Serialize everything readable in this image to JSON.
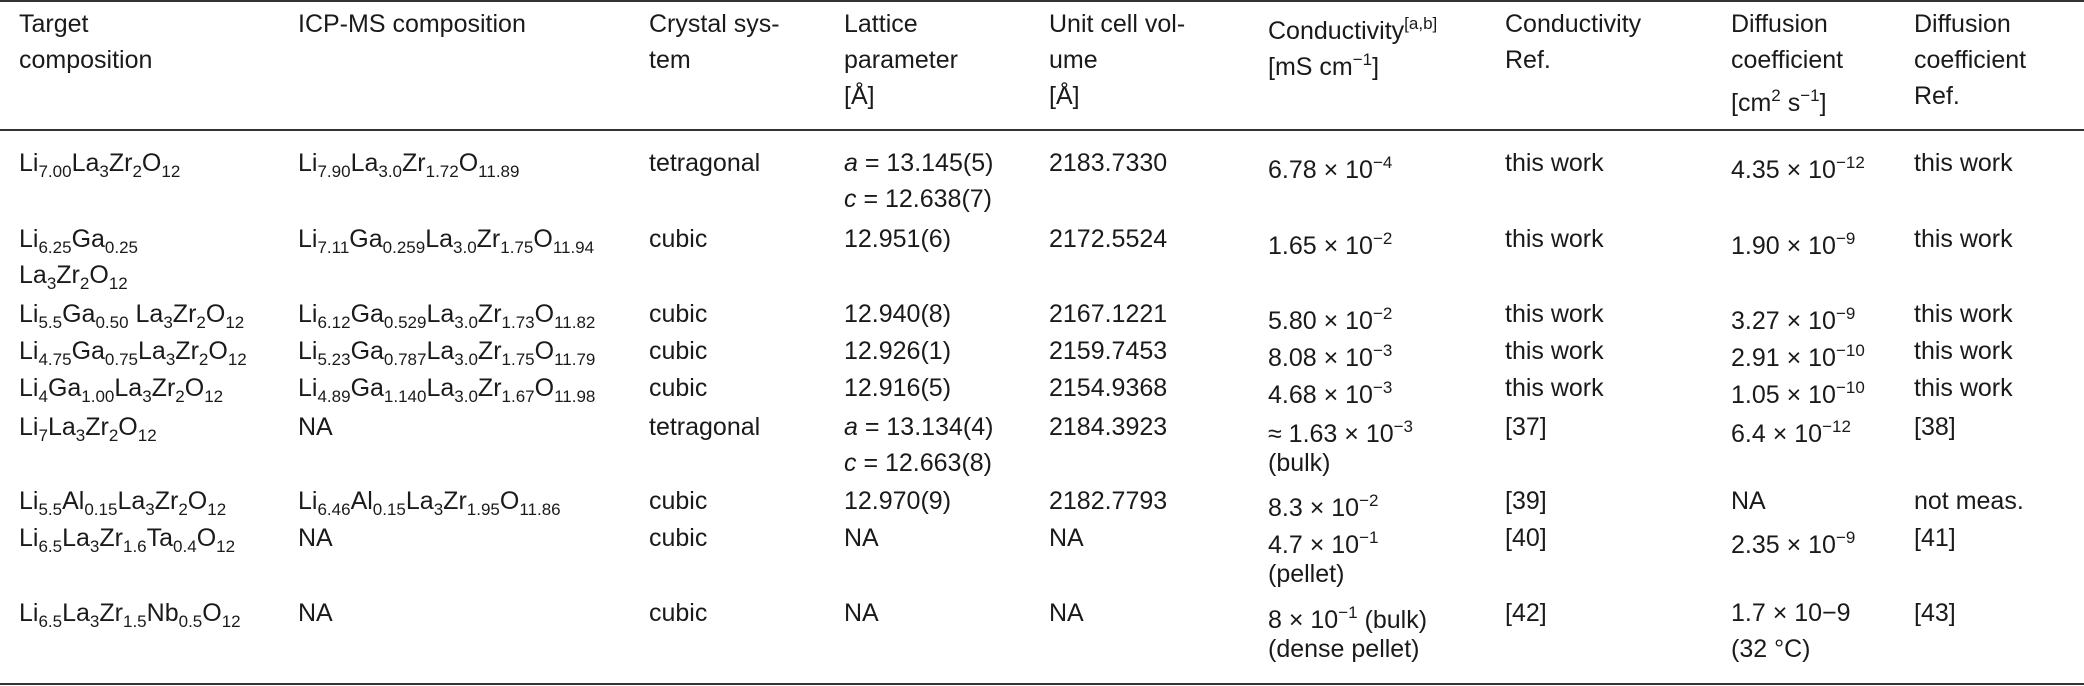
{
  "table": {
    "header": [
      [
        [
          "Target"
        ],
        [
          "composition"
        ]
      ],
      [
        [
          "ICP-MS composition"
        ]
      ],
      [
        [
          "Crystal sys-"
        ],
        [
          "tem"
        ]
      ],
      [
        [
          "Lattice"
        ],
        [
          "parameter"
        ],
        [
          "[Å]"
        ]
      ],
      [
        [
          "Unit cell vol-"
        ],
        [
          "ume"
        ],
        [
          "[Å]"
        ]
      ],
      [
        [
          "Conductivity",
          {
            "sup": "[a,b]"
          }
        ],
        [
          "[mS cm",
          {
            "sup": "−1"
          },
          "]"
        ]
      ],
      [
        [
          "Conductivity"
        ],
        [
          "Ref."
        ]
      ],
      [
        [
          "Diffusion"
        ],
        [
          "coefficient"
        ],
        [
          "[cm",
          {
            "sup": "2"
          },
          " s",
          {
            "sup": "−1"
          },
          "]"
        ]
      ],
      [
        [
          "Diffusion"
        ],
        [
          "coefficient"
        ],
        [
          "Ref."
        ]
      ]
    ],
    "rows": [
      [
        [
          [
            "Li",
            {
              "sub": "7.00"
            },
            "La",
            {
              "sub": "3"
            },
            "Zr",
            {
              "sub": "2"
            },
            "O",
            {
              "sub": "12"
            }
          ]
        ],
        [
          [
            "Li",
            {
              "sub": "7.90"
            },
            "La",
            {
              "sub": "3.0"
            },
            "Zr",
            {
              "sub": "1.72"
            },
            "O",
            {
              "sub": "11.89"
            }
          ]
        ],
        [
          [
            "tetragonal"
          ]
        ],
        [
          [
            {
              "i": "a"
            },
            " = 13.145(5)"
          ],
          [
            {
              "i": "c"
            },
            " = 12.638(7)"
          ]
        ],
        [
          [
            "2183.7330"
          ]
        ],
        [
          [
            "6.78 × 10",
            {
              "sup": "−4"
            }
          ]
        ],
        [
          [
            "this work"
          ]
        ],
        [
          [
            "4.35 × 10",
            {
              "sup": "−12"
            }
          ]
        ],
        [
          [
            "this work"
          ]
        ]
      ],
      [
        [
          [
            "Li",
            {
              "sub": "6.25"
            },
            "Ga",
            {
              "sub": "0.25"
            }
          ],
          [
            "La",
            {
              "sub": "3"
            },
            "Zr",
            {
              "sub": "2"
            },
            "O",
            {
              "sub": "12"
            }
          ]
        ],
        [
          [
            "Li",
            {
              "sub": "7.11"
            },
            "Ga",
            {
              "sub": "0.259"
            },
            "La",
            {
              "sub": "3.0"
            },
            "Zr",
            {
              "sub": "1.75"
            },
            "O",
            {
              "sub": "11.94"
            }
          ]
        ],
        [
          [
            "cubic"
          ]
        ],
        [
          [
            "12.951(6)"
          ]
        ],
        [
          [
            "2172.5524"
          ]
        ],
        [
          [
            "1.65 × 10",
            {
              "sup": "−2"
            }
          ]
        ],
        [
          [
            "this work"
          ]
        ],
        [
          [
            "1.90 × 10",
            {
              "sup": "−9"
            }
          ]
        ],
        [
          [
            "this work"
          ]
        ]
      ],
      [
        [
          [
            "Li",
            {
              "sub": "5.5"
            },
            "Ga",
            {
              "sub": "0.50"
            },
            " La",
            {
              "sub": "3"
            },
            "Zr",
            {
              "sub": "2"
            },
            "O",
            {
              "sub": "12"
            }
          ]
        ],
        [
          [
            "Li",
            {
              "sub": "6.12"
            },
            "Ga",
            {
              "sub": "0.529"
            },
            "La",
            {
              "sub": "3.0"
            },
            "Zr",
            {
              "sub": "1.73"
            },
            "O",
            {
              "sub": "11.82"
            }
          ]
        ],
        [
          [
            "cubic"
          ]
        ],
        [
          [
            "12.940(8)"
          ]
        ],
        [
          [
            "2167.1221"
          ]
        ],
        [
          [
            "5.80 × 10",
            {
              "sup": "−2"
            }
          ]
        ],
        [
          [
            "this work"
          ]
        ],
        [
          [
            "3.27 × 10",
            {
              "sup": "−9"
            }
          ]
        ],
        [
          [
            "this work"
          ]
        ]
      ],
      [
        [
          [
            "Li",
            {
              "sub": "4.75"
            },
            "Ga",
            {
              "sub": "0.75"
            },
            "La",
            {
              "sub": "3"
            },
            "Zr",
            {
              "sub": "2"
            },
            "O",
            {
              "sub": "12"
            }
          ]
        ],
        [
          [
            "Li",
            {
              "sub": "5.23"
            },
            "Ga",
            {
              "sub": "0.787"
            },
            "La",
            {
              "sub": "3.0"
            },
            "Zr",
            {
              "sub": "1.75"
            },
            "O",
            {
              "sub": "11.79"
            }
          ]
        ],
        [
          [
            "cubic"
          ]
        ],
        [
          [
            "12.926(1)"
          ]
        ],
        [
          [
            "2159.7453"
          ]
        ],
        [
          [
            "8.08 × 10",
            {
              "sup": "−3"
            }
          ]
        ],
        [
          [
            "this work"
          ]
        ],
        [
          [
            "2.91 × 10",
            {
              "sup": "−10"
            }
          ]
        ],
        [
          [
            "this work"
          ]
        ]
      ],
      [
        [
          [
            "Li",
            {
              "sub": "4"
            },
            "Ga",
            {
              "sub": "1.00"
            },
            "La",
            {
              "sub": "3"
            },
            "Zr",
            {
              "sub": "2"
            },
            "O",
            {
              "sub": "12"
            }
          ]
        ],
        [
          [
            "Li",
            {
              "sub": "4.89"
            },
            "Ga",
            {
              "sub": "1.140"
            },
            "La",
            {
              "sub": "3.0"
            },
            "Zr",
            {
              "sub": "1.67"
            },
            "O",
            {
              "sub": "11.98"
            }
          ]
        ],
        [
          [
            "cubic"
          ]
        ],
        [
          [
            "12.916(5)"
          ]
        ],
        [
          [
            "2154.9368"
          ]
        ],
        [
          [
            "4.68 × 10",
            {
              "sup": "−3"
            }
          ]
        ],
        [
          [
            "this work"
          ]
        ],
        [
          [
            "1.05 × 10",
            {
              "sup": "−10"
            }
          ]
        ],
        [
          [
            "this work"
          ]
        ]
      ],
      [
        [
          [
            "Li",
            {
              "sub": "7"
            },
            "La",
            {
              "sub": "3"
            },
            "Zr",
            {
              "sub": "2"
            },
            "O",
            {
              "sub": "12"
            }
          ]
        ],
        [
          [
            "NA"
          ]
        ],
        [
          [
            "tetragonal"
          ]
        ],
        [
          [
            {
              "i": "a"
            },
            " = 13.134(4)"
          ],
          [
            {
              "i": "c"
            },
            " = 12.663(8)"
          ]
        ],
        [
          [
            "2184.3923"
          ]
        ],
        [
          [
            "≈ 1.63 × 10",
            {
              "sup": "−3"
            }
          ],
          [
            "(bulk)"
          ]
        ],
        [
          [
            "[37]"
          ]
        ],
        [
          [
            "6.4 × 10",
            {
              "sup": "−12"
            }
          ]
        ],
        [
          [
            "[38]"
          ]
        ]
      ],
      [
        [
          [
            "Li",
            {
              "sub": "5.5"
            },
            "Al",
            {
              "sub": "0.15"
            },
            "La",
            {
              "sub": "3"
            },
            "Zr",
            {
              "sub": "2"
            },
            "O",
            {
              "sub": "12"
            }
          ]
        ],
        [
          [
            "Li",
            {
              "sub": "6.46"
            },
            "Al",
            {
              "sub": "0.15"
            },
            "La",
            {
              "sub": "3"
            },
            "Zr",
            {
              "sub": "1.95"
            },
            "O",
            {
              "sub": "11.86"
            }
          ]
        ],
        [
          [
            "cubic"
          ]
        ],
        [
          [
            "12.970(9)"
          ]
        ],
        [
          [
            "2182.7793"
          ]
        ],
        [
          [
            "8.3 × 10",
            {
              "sup": "−2"
            }
          ]
        ],
        [
          [
            "[39]"
          ]
        ],
        [
          [
            "NA"
          ]
        ],
        [
          [
            "not meas."
          ]
        ]
      ],
      [
        [
          [
            "Li",
            {
              "sub": "6.5"
            },
            "La",
            {
              "sub": "3"
            },
            "Zr",
            {
              "sub": "1.6"
            },
            "Ta",
            {
              "sub": "0.4"
            },
            "O",
            {
              "sub": "12"
            }
          ]
        ],
        [
          [
            "NA"
          ]
        ],
        [
          [
            "cubic"
          ]
        ],
        [
          [
            "NA"
          ]
        ],
        [
          [
            "NA"
          ]
        ],
        [
          [
            "4.7 × 10",
            {
              "sup": "−1"
            }
          ],
          [
            "(pellet)"
          ]
        ],
        [
          [
            "[40]"
          ]
        ],
        [
          [
            "2.35 × 10",
            {
              "sup": "−9"
            }
          ]
        ],
        [
          [
            "[41]"
          ]
        ]
      ],
      [
        [
          [
            "Li",
            {
              "sub": "6.5"
            },
            "La",
            {
              "sub": "3"
            },
            "Zr",
            {
              "sub": "1.5"
            },
            "Nb",
            {
              "sub": "0.5"
            },
            "O",
            {
              "sub": "12"
            }
          ]
        ],
        [
          [
            "NA"
          ]
        ],
        [
          [
            "cubic"
          ]
        ],
        [
          [
            "NA"
          ]
        ],
        [
          [
            "NA"
          ]
        ],
        [
          [
            "8 × 10",
            {
              "sup": "−1"
            },
            " (bulk)"
          ],
          [
            "(dense pellet)"
          ]
        ],
        [
          [
            "[42]"
          ]
        ],
        [
          [
            "1.7 × 10−9"
          ],
          [
            "(32 °C)"
          ]
        ],
        [
          [
            "[43]"
          ]
        ]
      ]
    ]
  }
}
